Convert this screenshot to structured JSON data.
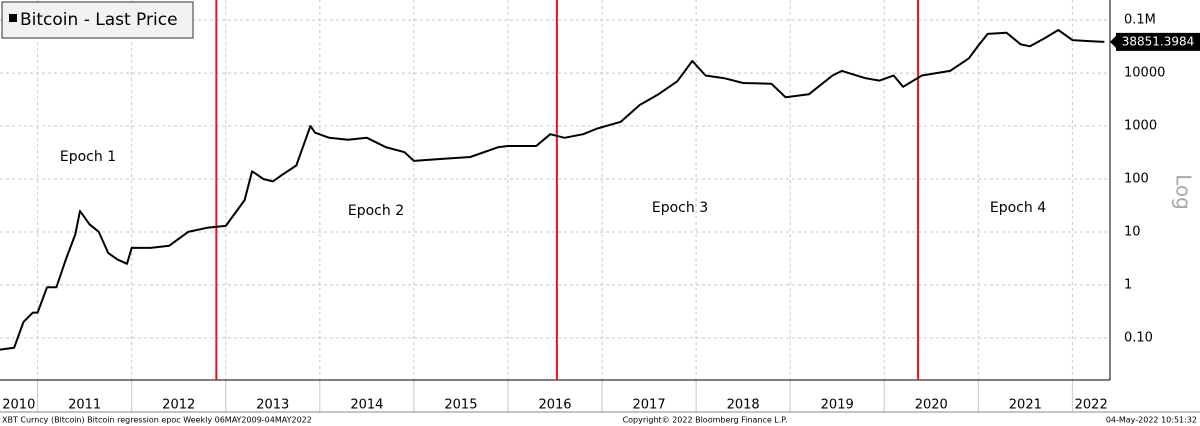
{
  "chart_data": {
    "type": "line",
    "legend": "Bitcoin - Last Price",
    "y_axis_label": "Log",
    "log_scale": true,
    "grid": true,
    "annotations": [
      "Epoch 1",
      "Epoch 2",
      "Epoch 3",
      "Epoch 4"
    ],
    "halvings": [
      2012.9,
      2016.52,
      2020.36
    ],
    "halving_color": "#e8121c",
    "footer": [
      "XBT Curncy (Bitcoin) Bitcoin regression epoc  Weekly 06MAY2009-04MAY2022",
      "Copyright© 2022 Bloomberg Finance L.P.",
      "04-May-2022 10:51:32"
    ],
    "xlim": [
      2010.6,
      2022.4
    ],
    "xticks": [
      2011,
      2012,
      2013,
      2014,
      2015,
      2016,
      2017,
      2018,
      2019,
      2020,
      2021,
      2022
    ],
    "x_labels": [
      {
        "value": 2010.8,
        "label": "2010"
      },
      {
        "value": 2011.5,
        "label": "2011"
      },
      {
        "value": 2012.5,
        "label": "2012"
      },
      {
        "value": 2013.5,
        "label": "2013"
      },
      {
        "value": 2014.5,
        "label": "2014"
      },
      {
        "value": 2015.5,
        "label": "2015"
      },
      {
        "value": 2016.5,
        "label": "2016"
      },
      {
        "value": 2017.5,
        "label": "2017"
      },
      {
        "value": 2018.5,
        "label": "2018"
      },
      {
        "value": 2019.5,
        "label": "2019"
      },
      {
        "value": 2020.5,
        "label": "2020"
      },
      {
        "value": 2021.5,
        "label": "2021"
      },
      {
        "value": 2022.2,
        "label": "2022"
      }
    ],
    "ylim": [
      0.016,
      240000
    ],
    "yticks": [
      {
        "value": 0.1,
        "label": "0.10"
      },
      1,
      10,
      100,
      1000,
      10000,
      {
        "value": 100000,
        "label": "0.1M"
      }
    ],
    "x": [
      2010.6,
      2010.75,
      2010.85,
      2010.95,
      2011.0,
      2011.1,
      2011.2,
      2011.3,
      2011.4,
      2011.45,
      2011.55,
      2011.65,
      2011.75,
      2011.85,
      2011.95,
      2012.0,
      2012.2,
      2012.4,
      2012.6,
      2012.8,
      2013.0,
      2013.2,
      2013.28,
      2013.4,
      2013.5,
      2013.6,
      2013.75,
      2013.9,
      2013.95,
      2014.1,
      2014.3,
      2014.5,
      2014.7,
      2014.9,
      2015.0,
      2015.3,
      2015.6,
      2015.9,
      2016.0,
      2016.3,
      2016.45,
      2016.6,
      2016.8,
      2016.95,
      2017.2,
      2017.4,
      2017.6,
      2017.8,
      2017.96,
      2018.1,
      2018.3,
      2018.5,
      2018.8,
      2018.95,
      2019.2,
      2019.45,
      2019.55,
      2019.8,
      2019.95,
      2020.1,
      2020.2,
      2020.4,
      2020.7,
      2020.9,
      2021.0,
      2021.1,
      2021.3,
      2021.45,
      2021.55,
      2021.7,
      2021.85,
      2022.0,
      2022.2,
      2022.34
    ],
    "series": [
      {
        "name": "Bitcoin - Last Price",
        "color": "#000000",
        "values": [
          0.06,
          0.065,
          0.2,
          0.3,
          0.3,
          0.9,
          0.9,
          3,
          9,
          25,
          14,
          10,
          4,
          3,
          2.5,
          5,
          5,
          5.5,
          10,
          12,
          13,
          40,
          140,
          100,
          90,
          120,
          180,
          1000,
          750,
          600,
          550,
          600,
          400,
          320,
          220,
          240,
          260,
          400,
          420,
          420,
          700,
          600,
          700,
          900,
          1200,
          2500,
          4000,
          7000,
          17000,
          9000,
          8000,
          6500,
          6300,
          3500,
          4000,
          9000,
          11000,
          8000,
          7200,
          9000,
          5500,
          9000,
          11000,
          19000,
          33000,
          55000,
          58000,
          35000,
          32000,
          45000,
          65000,
          42000,
          40000,
          38851.3984
        ]
      }
    ]
  }
}
